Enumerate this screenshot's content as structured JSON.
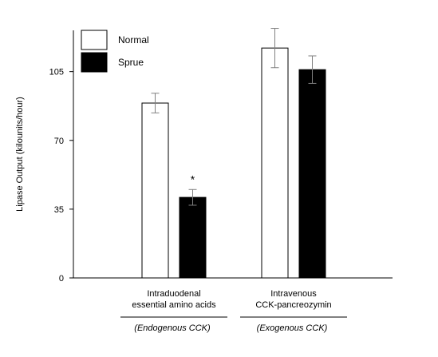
{
  "chart_data": {
    "type": "bar",
    "ylabel": "Lipase Output (kilounits/hour)",
    "yticks": [
      0,
      35,
      70,
      105
    ],
    "ylim": [
      0,
      126
    ],
    "grid": false,
    "legend_position": "top-left",
    "categories": [
      [
        "Intraduodenal",
        "essential amino acids"
      ],
      [
        "Intravenous",
        "CCK-pancreozymin"
      ]
    ],
    "group_sublabels": [
      "(Endogenous CCK)",
      "(Exogenous CCK)"
    ],
    "series": [
      {
        "name": "Normal",
        "fill": "#ffffff",
        "values": [
          89,
          117
        ],
        "errors": [
          5,
          10
        ]
      },
      {
        "name": "Sprue",
        "fill": "#000000",
        "values": [
          41,
          106
        ],
        "errors": [
          4,
          7
        ]
      }
    ],
    "annotations": [
      {
        "text": "*",
        "series": 1,
        "category": 0
      }
    ],
    "colors": {
      "axis": "#000000",
      "bar_edge": "#000000",
      "error_bar": "#808080"
    }
  }
}
